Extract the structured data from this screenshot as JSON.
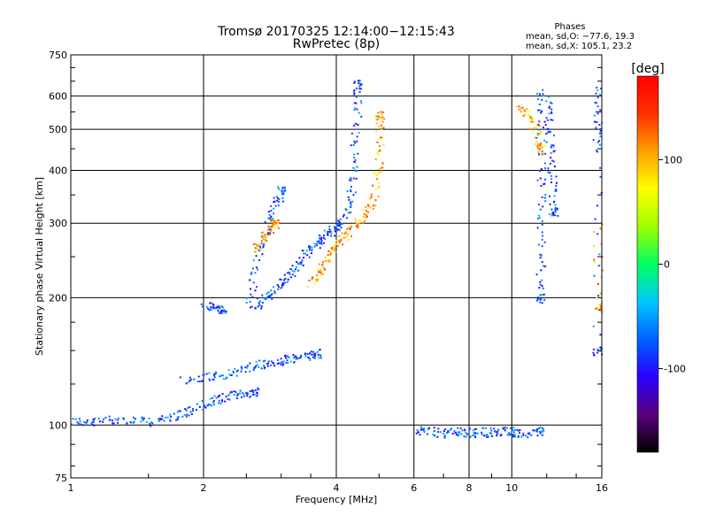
{
  "chart_data": {
    "type": "scatter",
    "title": "Tromsø 20170325 12:14:00−12:15:43",
    "subtitle": "RwPretec (8p)",
    "stats": {
      "header": "Phases",
      "o_line": "mean, sd,O: −77.6, 19.3",
      "x_line": "mean, sd,X: 105.1, 23.2"
    },
    "xlabel": "Frequency [MHz]",
    "ylabel": "Stationary phase Virtual Height [km]",
    "xscale": "log",
    "yscale": "log",
    "xlim": [
      1,
      16
    ],
    "ylim": [
      75,
      750
    ],
    "grid": true,
    "xticks": [
      {
        "value": 1,
        "label": "1"
      },
      {
        "value": 2,
        "label": "2"
      },
      {
        "value": 4,
        "label": "4"
      },
      {
        "value": 6,
        "label": "6"
      },
      {
        "value": 8,
        "label": "8"
      },
      {
        "value": 10,
        "label": "10"
      },
      {
        "value": 16,
        "label": "16"
      }
    ],
    "yticks": [
      {
        "value": 75,
        "label": "75"
      },
      {
        "value": 100,
        "label": "100"
      },
      {
        "value": 200,
        "label": "200"
      },
      {
        "value": 300,
        "label": "300"
      },
      {
        "value": 400,
        "label": "400"
      },
      {
        "value": 500,
        "label": "500"
      },
      {
        "value": 600,
        "label": "600"
      },
      {
        "value": 750,
        "label": "750"
      }
    ],
    "colorbar": {
      "label": "[deg]",
      "range": [
        -180,
        180
      ],
      "ticks": [
        {
          "value": 100,
          "label": "100"
        },
        {
          "value": 0,
          "label": "0"
        },
        {
          "value": -100,
          "label": "-100"
        }
      ],
      "stops": [
        "#000000",
        "#5a007a",
        "#2a00ff",
        "#0060ff",
        "#00c8ff",
        "#00ff60",
        "#a0ff00",
        "#ffff00",
        "#ffa000",
        "#ff3000",
        "#ff0000"
      ]
    },
    "series": [
      {
        "mode": "O",
        "phase_mean": -77.6,
        "traces": [
          {
            "f": [
              1.0,
              1.1,
              1.2,
              1.35,
              1.5,
              1.65,
              1.8,
              1.95,
              2.1,
              2.25,
              2.4,
              2.6
            ],
            "h": [
              103,
              101,
              104,
              103,
              102,
              104,
              107,
              111,
              114,
              117,
              119,
              120
            ]
          },
          {
            "f": [
              1.8,
              2.0,
              2.2,
              2.4,
              2.6,
              2.8,
              3.0,
              3.2,
              3.4,
              3.6
            ],
            "h": [
              128,
              130,
              132,
              135,
              138,
              140,
              142,
              144,
              146,
              148
            ]
          },
          {
            "f": [
              2.6,
              2.75,
              2.9,
              3.05,
              3.2,
              3.35,
              3.5,
              3.65,
              3.8,
              3.95,
              4.1,
              4.25,
              4.35,
              4.4,
              4.45,
              4.45
            ],
            "h": [
              190,
              200,
              210,
              222,
              235,
              250,
              262,
              272,
              283,
              292,
              302,
              330,
              380,
              450,
              550,
              640
            ]
          },
          {
            "f": [
              2.5,
              2.6,
              2.7,
              2.8,
              2.9,
              3.0
            ],
            "h": [
              190,
              230,
              270,
              300,
              330,
              360
            ]
          },
          {
            "f": [
              2.0,
              2.1,
              2.2
            ],
            "h": [
              192,
              190,
              188
            ]
          },
          {
            "f": [
              6.0,
              6.5,
              7.0,
              7.5,
              8.0,
              8.5,
              9.0,
              9.5,
              10.0,
              10.5,
              11.5
            ],
            "h": [
              97,
              97,
              96,
              97,
              96,
              97,
              96,
              97,
              97,
              96,
              97
            ]
          },
          {
            "f": [
              12.0,
              12.1,
              12.2,
              12.3,
              12.4
            ],
            "h": [
              600,
              520,
              450,
              380,
              320
            ]
          },
          {
            "f": [
              11.6,
              11.6,
              11.6,
              11.6,
              11.6,
              11.6
            ],
            "h": [
              630,
              520,
              400,
              320,
              250,
              200
            ]
          },
          {
            "f": [
              15.6,
              15.6,
              15.6,
              15.6
            ],
            "h": [
              640,
              520,
              450,
              150
            ]
          }
        ]
      },
      {
        "mode": "X",
        "phase_mean": 105.1,
        "traces": [
          {
            "f": [
              3.5,
              3.65,
              3.8,
              3.95,
              4.1,
              4.3,
              4.5,
              4.7,
              4.85,
              4.95,
              5.0,
              5.0
            ],
            "h": [
              215,
              230,
              245,
              262,
              278,
              290,
              305,
              320,
              345,
              400,
              470,
              540
            ]
          },
          {
            "f": [
              2.6,
              2.7,
              2.8,
              2.9
            ],
            "h": [
              260,
              275,
              290,
              300
            ]
          },
          {
            "f": [
              10.3,
              10.8,
              11.3,
              11.6
            ],
            "h": [
              560,
              550,
              500,
              450
            ]
          },
          {
            "f": [
              15.6,
              15.7
            ],
            "h": [
              300,
              190
            ]
          }
        ]
      }
    ]
  }
}
